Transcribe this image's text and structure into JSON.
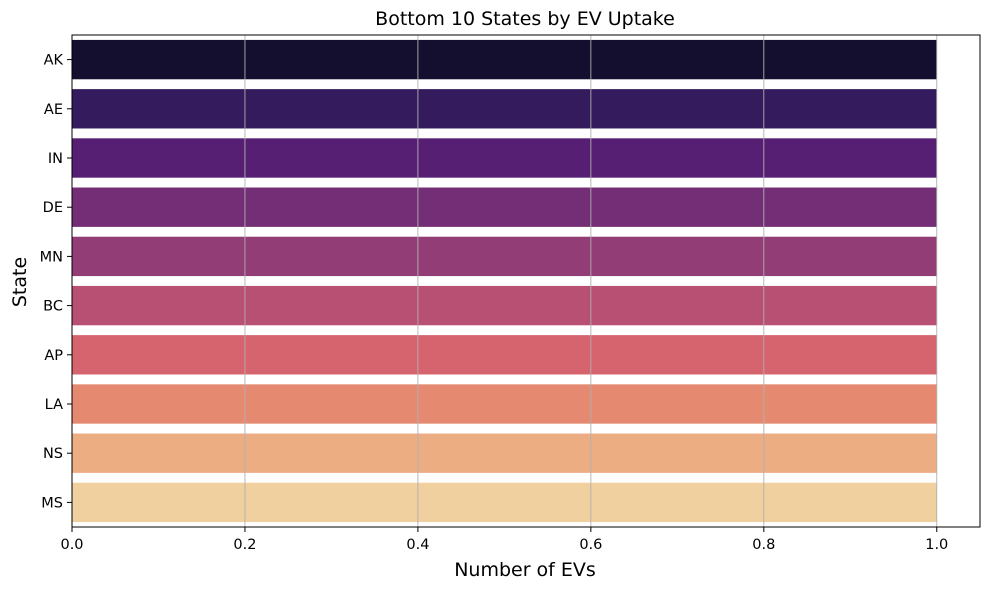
{
  "chart_data": {
    "type": "bar",
    "orientation": "horizontal",
    "title": "Bottom 10 States by EV Uptake",
    "xlabel": "Number of EVs",
    "ylabel": "State",
    "categories": [
      "AK",
      "AE",
      "IN",
      "DE",
      "MN",
      "BC",
      "AP",
      "LA",
      "NS",
      "MS"
    ],
    "values": [
      1,
      1,
      1,
      1,
      1,
      1,
      1,
      1,
      1,
      1
    ],
    "colors": [
      "#140f2e",
      "#341b5d",
      "#561f73",
      "#742e76",
      "#933d76",
      "#b85073",
      "#d5646e",
      "#e58a71",
      "#ecad83",
      "#f0d09f"
    ],
    "xlim": [
      0,
      1.05
    ],
    "xticks": [
      "0.0",
      "0.2",
      "0.4",
      "0.6",
      "0.8",
      "1.0"
    ],
    "grid": {
      "x": true,
      "y": false,
      "color": "#b0b0b0"
    }
  }
}
